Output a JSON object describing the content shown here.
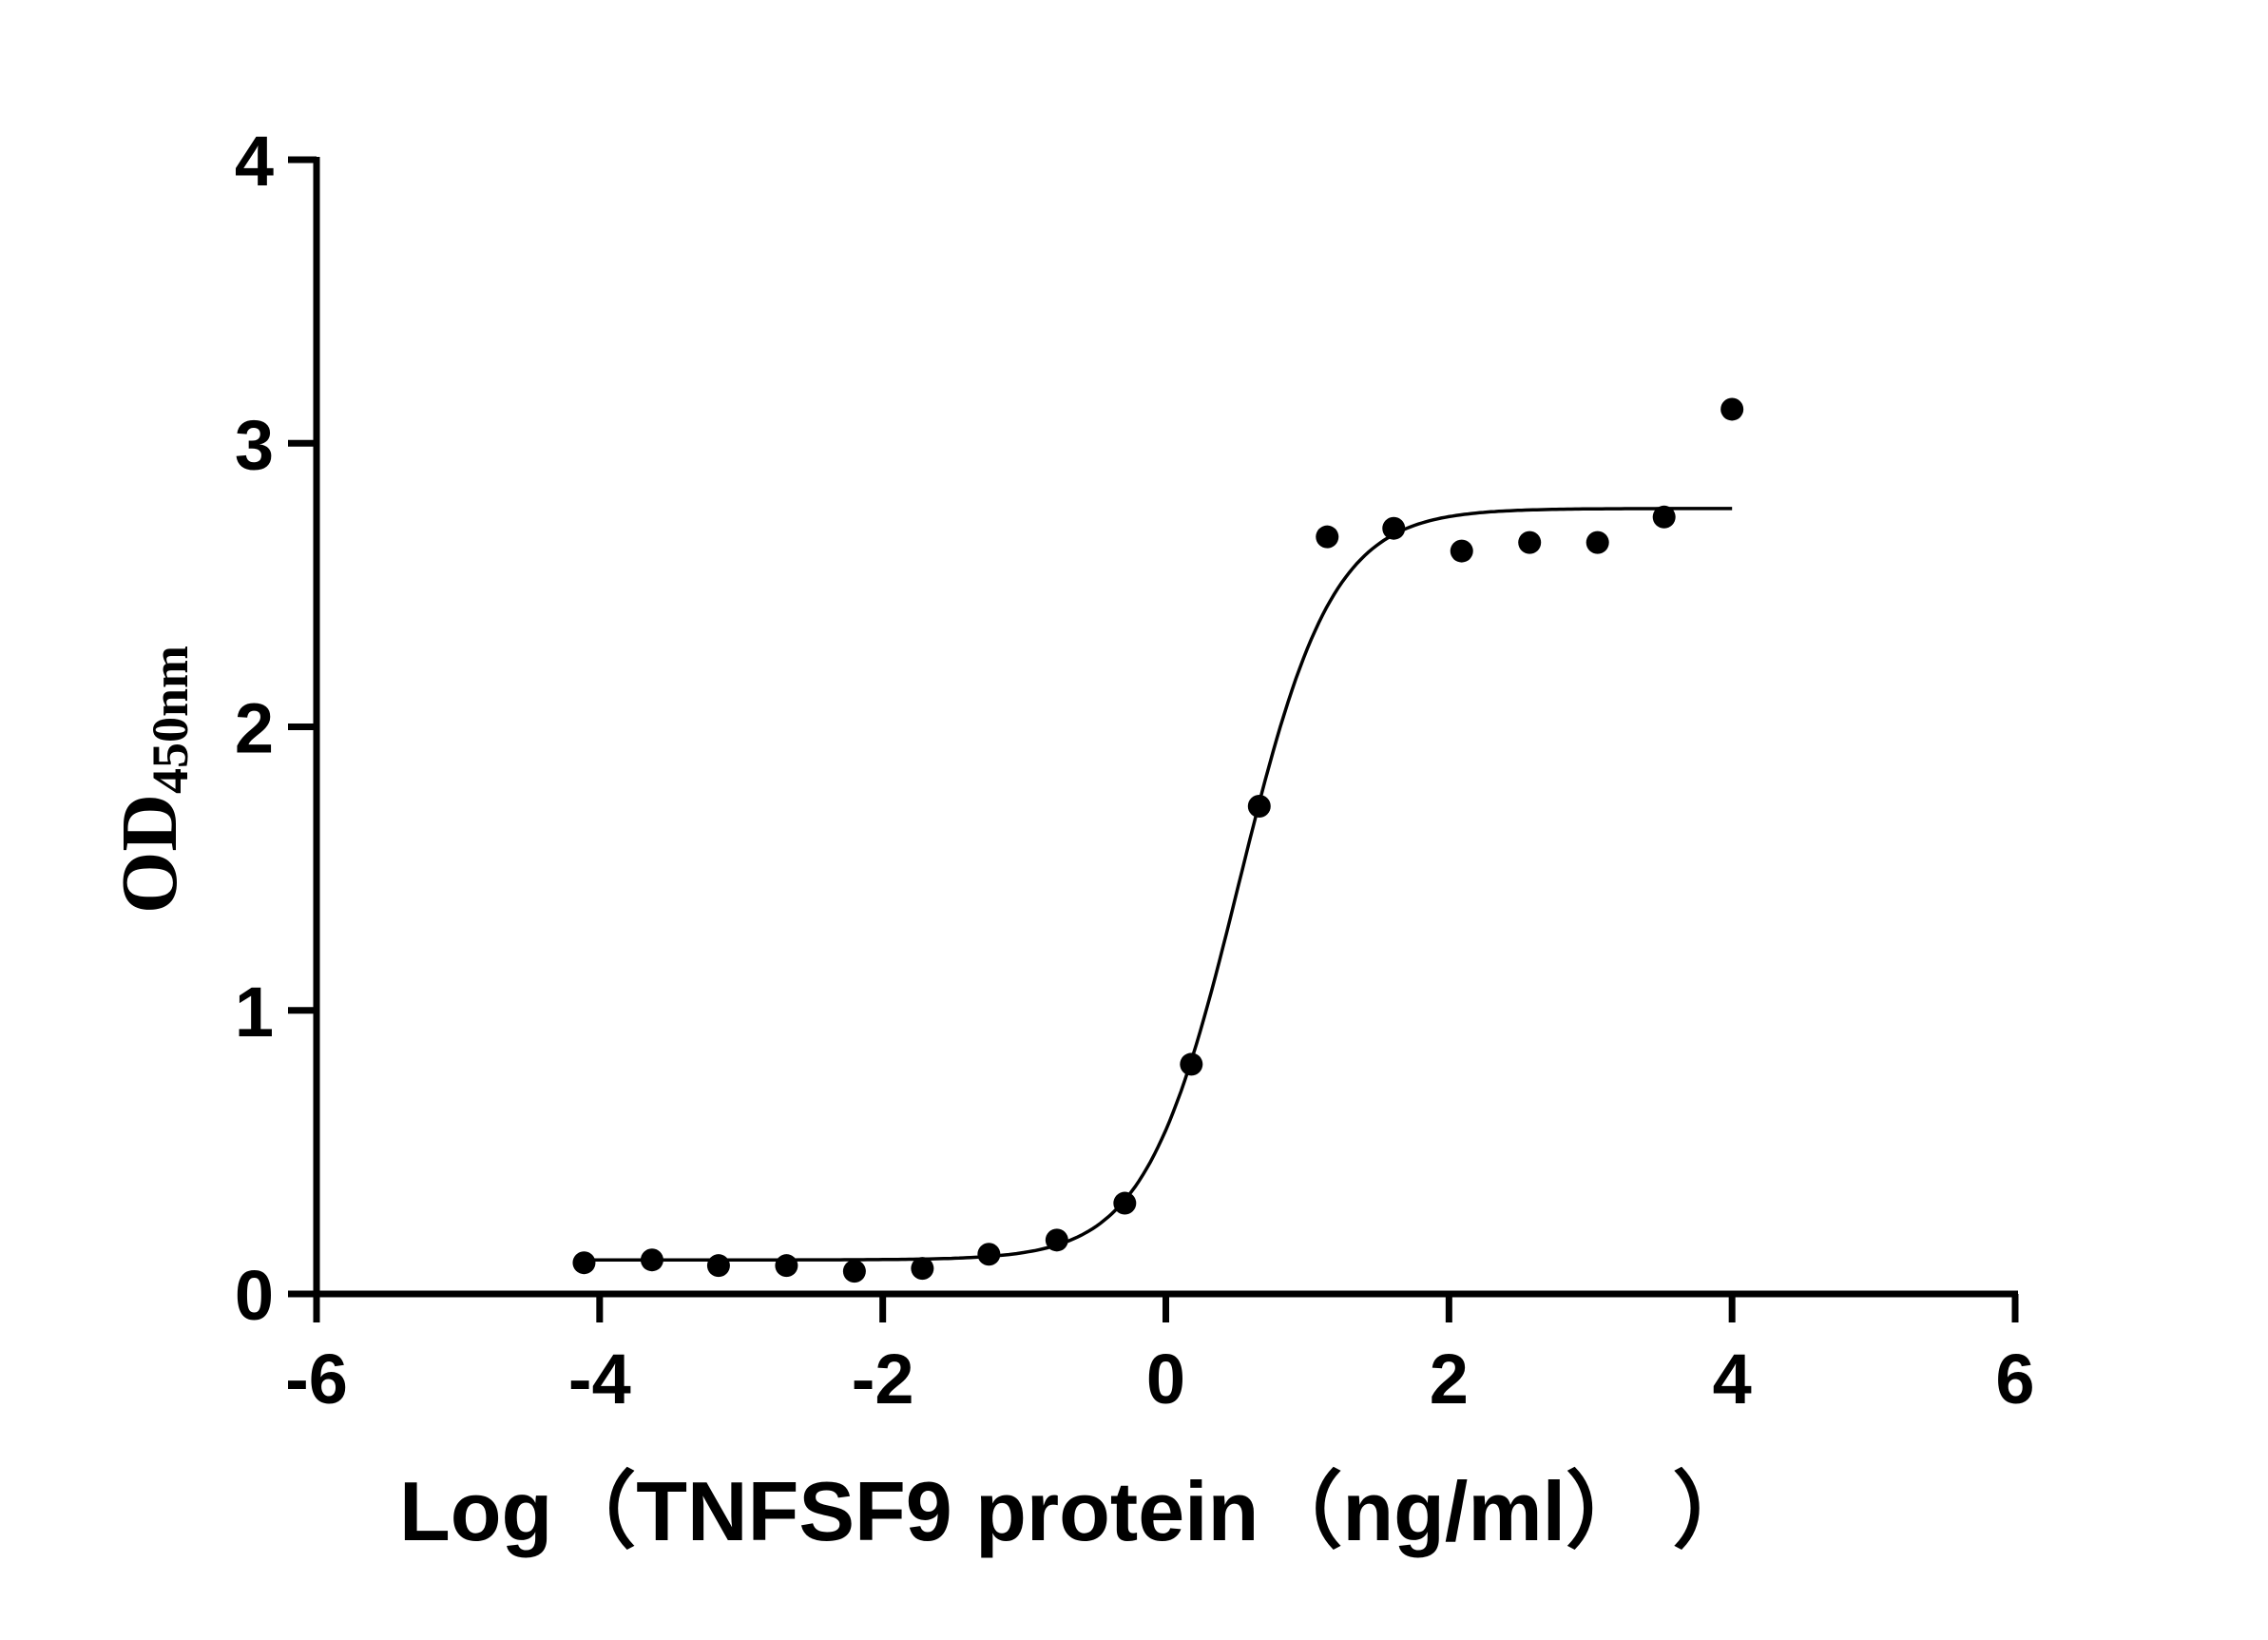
{
  "chart_data": {
    "type": "scatter",
    "xlabel": "Log（TNFSF9 protein（ng/ml）  ）",
    "ylabel": "OD",
    "ylabel_subscript": "450nm",
    "xlim": [
      -6,
      6
    ],
    "ylim": [
      0,
      4
    ],
    "xticks": [
      "-6",
      "-4",
      "-2",
      "0",
      "2",
      "4",
      "6"
    ],
    "yticks": [
      "0",
      "1",
      "2",
      "3",
      "4"
    ],
    "grid": false,
    "points": {
      "x": [
        -4.11,
        -3.63,
        -3.16,
        -2.68,
        -2.2,
        -1.72,
        -1.25,
        -0.77,
        -0.29,
        0.18,
        0.66,
        1.14,
        1.61,
        2.09,
        2.57,
        3.05,
        3.52,
        4.0
      ],
      "y": [
        0.11,
        0.12,
        0.1,
        0.1,
        0.08,
        0.09,
        0.14,
        0.19,
        0.32,
        0.81,
        1.72,
        2.67,
        2.7,
        2.62,
        2.65,
        2.65,
        2.74,
        3.12
      ]
    },
    "fit_curve": {
      "model": "four-parameter logistic",
      "bottom": 0.12,
      "top": 2.77,
      "log_ec50": 0.515,
      "hill_slope": 1.32,
      "x_range": [
        -4.11,
        4.0
      ]
    },
    "colors": {
      "points": "#000000",
      "curve": "#000000",
      "axes": "#000000"
    }
  }
}
